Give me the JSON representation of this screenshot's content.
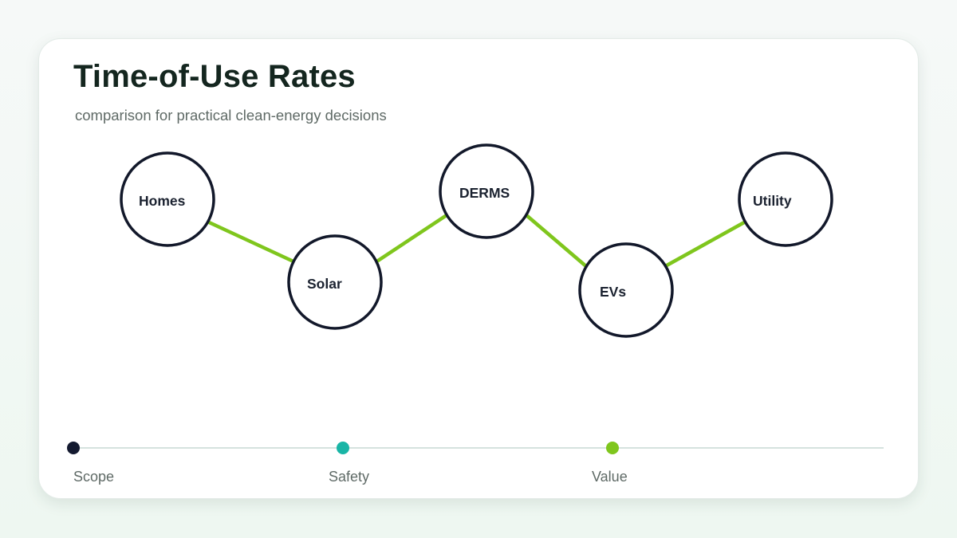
{
  "header": {
    "title": "Time-of-Use Rates",
    "subtitle": "comparison for practical clean-energy decisions"
  },
  "diagram": {
    "nodes": [
      {
        "id": "homes",
        "label": "Homes"
      },
      {
        "id": "solar",
        "label": "Solar"
      },
      {
        "id": "derms",
        "label": "DERMS"
      },
      {
        "id": "evs",
        "label": "EVs"
      },
      {
        "id": "utility",
        "label": "Utility"
      }
    ],
    "edges": [
      {
        "from": "homes",
        "to": "solar"
      },
      {
        "from": "solar",
        "to": "derms"
      },
      {
        "from": "derms",
        "to": "evs"
      },
      {
        "from": "evs",
        "to": "utility"
      }
    ],
    "edge_color": "#7fc61d",
    "node_stroke_color": "#12182a"
  },
  "timeline": {
    "markers": [
      {
        "label": "Scope",
        "color": "#141a30"
      },
      {
        "label": "Safety",
        "color": "#19b5a6"
      },
      {
        "label": "Value",
        "color": "#7fc61d"
      }
    ],
    "line_color": "#d5e2de"
  }
}
